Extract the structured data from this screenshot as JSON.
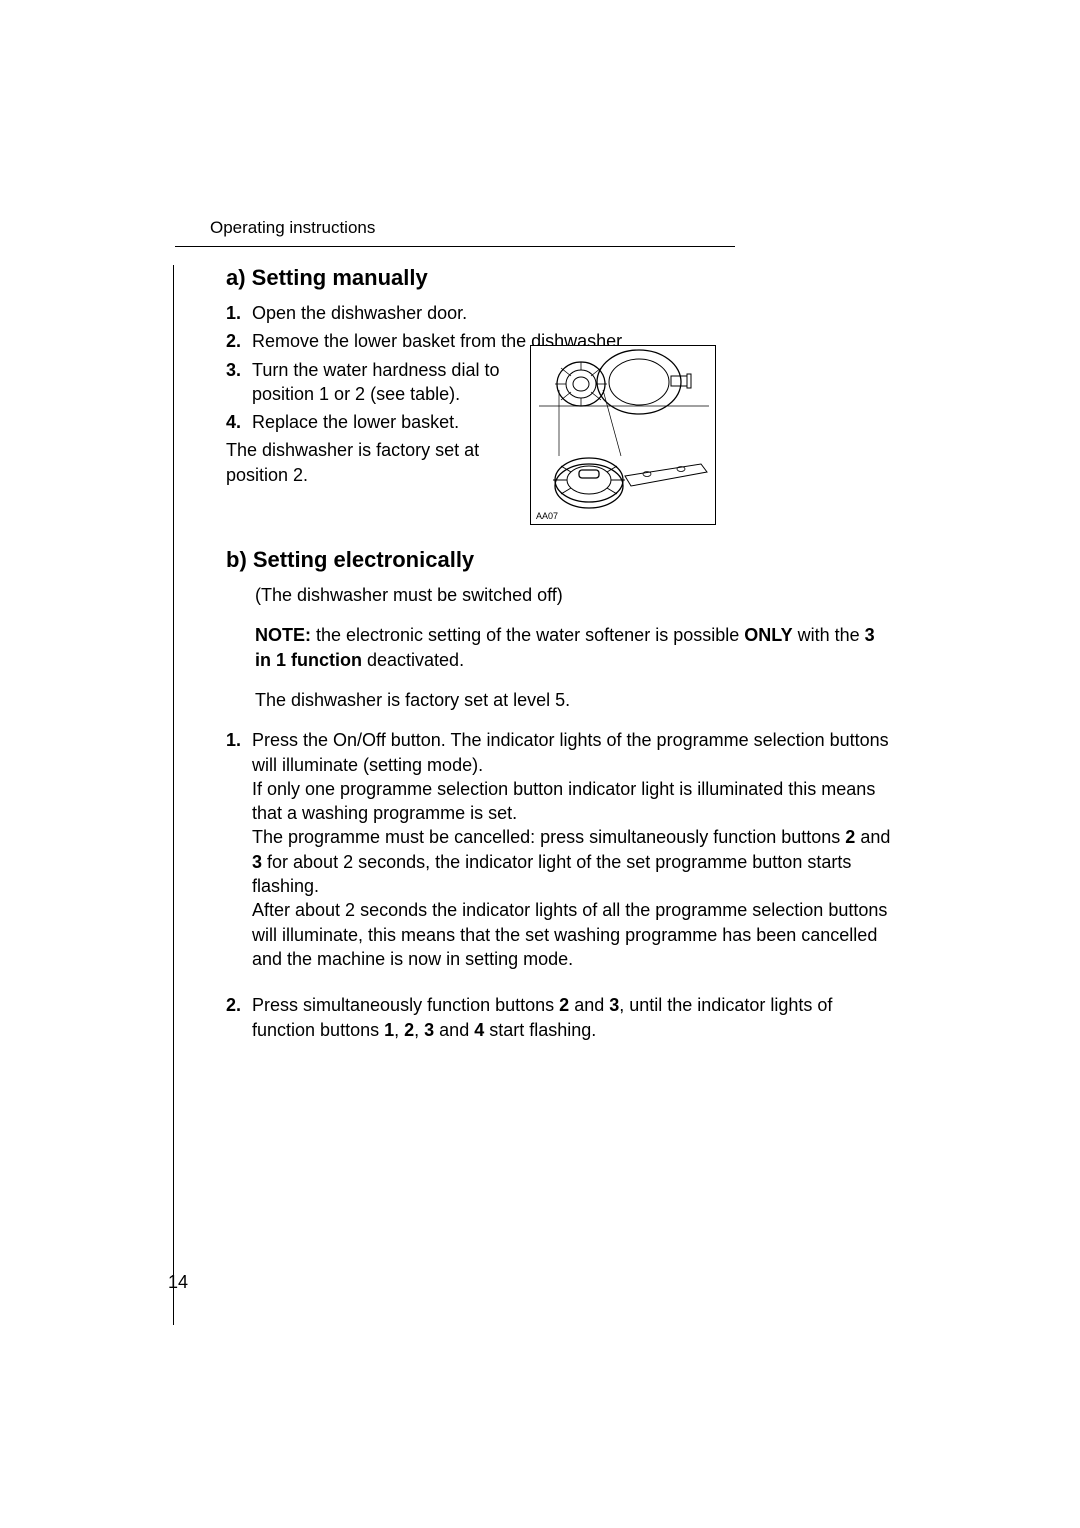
{
  "header": {
    "label": "Operating instructions"
  },
  "sectionA": {
    "heading": "a) Setting manually",
    "items": [
      {
        "num": "1.",
        "text": "Open the dishwasher door."
      },
      {
        "num": "2.",
        "text": "Remove the lower basket from the dishwasher."
      },
      {
        "num": "3.",
        "text": "Turn the water hardness dial to position 1 or 2 (see table)."
      },
      {
        "num": "4.",
        "text": "Replace the lower basket."
      }
    ],
    "note": "The dishwasher is factory set at position 2.",
    "diagramLabel": "AA07"
  },
  "sectionB": {
    "heading": "b) Setting electronically",
    "subtitle": "(The dishwasher must be switched off)",
    "noteLabel": "NOTE:",
    "noteText1": " the electronic setting of the water softener is possible ",
    "noteOnly": "ONLY",
    "noteText2": " with the ",
    "note3in1": "3 in 1 function",
    "noteText3": " deactivated.",
    "factory": "The dishwasher is factory set at level 5.",
    "items": [
      {
        "num": "1.",
        "parts": [
          {
            "t": "Press the On/Off button. The indicator lights of the programme selection buttons will illuminate (setting mode).",
            "br": true
          },
          {
            "t": "If only one programme selection button indicator light is illuminated this means that a washing programme is set.",
            "br": true
          },
          {
            "t": "The programme must be cancelled: press simultaneously function buttons ",
            "br": false
          },
          {
            "t": "2",
            "bold": true
          },
          {
            "t": " and "
          },
          {
            "t": "3",
            "bold": true
          },
          {
            "t": " for about 2 seconds, the indicator light of the set programme button starts flashing.",
            "br": true
          },
          {
            "t": "After about 2 seconds the indicator lights of all the programme selection buttons will illuminate, this means that the set washing programme has been cancelled and the machine is now in setting mode."
          }
        ]
      },
      {
        "num": "2.",
        "parts": [
          {
            "t": "Press simultaneously function buttons "
          },
          {
            "t": "2",
            "bold": true
          },
          {
            "t": " and "
          },
          {
            "t": "3",
            "bold": true
          },
          {
            "t": ", until the indicator lights of function buttons "
          },
          {
            "t": "1",
            "bold": true
          },
          {
            "t": ", "
          },
          {
            "t": "2",
            "bold": true
          },
          {
            "t": ", "
          },
          {
            "t": "3",
            "bold": true
          },
          {
            "t": " and "
          },
          {
            "t": "4",
            "bold": true
          },
          {
            "t": " start flashing."
          }
        ]
      }
    ]
  },
  "pageNumber": "14",
  "styles": {
    "text_color": "#000000",
    "background": "#ffffff",
    "body_fontsize": 18,
    "heading_fontsize": 22
  }
}
